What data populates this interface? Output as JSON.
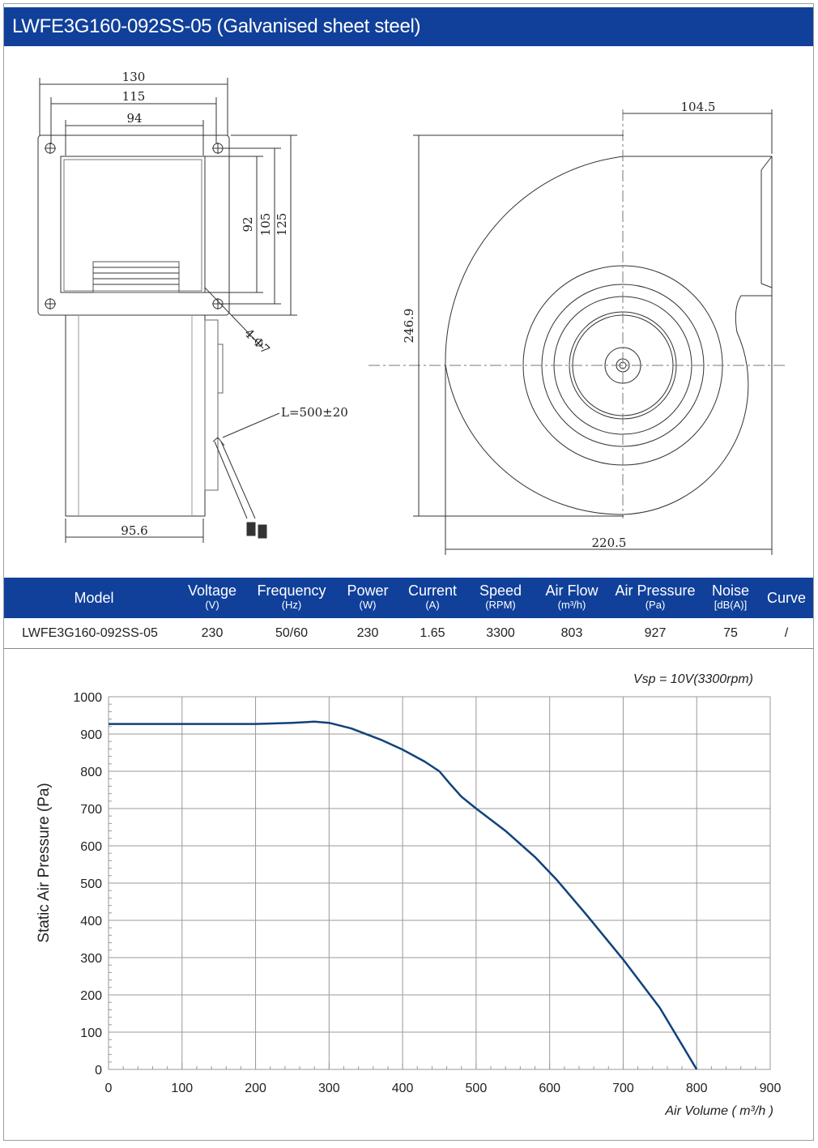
{
  "header": {
    "title": "LWFE3G160-092SS-05 (Galvanised sheet steel)"
  },
  "drawing": {
    "dims": {
      "d130": "130",
      "d115": "115",
      "d94": "94",
      "d92": "92",
      "d105": "105",
      "d125": "125",
      "holes": "4-Φ7",
      "d95_6": "95.6",
      "cable": "L=500±20",
      "d104_5": "104.5",
      "d246_9": "246.9",
      "d220_5": "220.5"
    }
  },
  "specs": {
    "columns": [
      {
        "label": "Model",
        "unit": ""
      },
      {
        "label": "Voltage",
        "unit": "(V)"
      },
      {
        "label": "Frequency",
        "unit": "(Hz)"
      },
      {
        "label": "Power",
        "unit": "(W)"
      },
      {
        "label": "Current",
        "unit": "(A)"
      },
      {
        "label": "Speed",
        "unit": "(RPM)"
      },
      {
        "label": "Air Flow",
        "unit": "(m³/h)"
      },
      {
        "label": "Air Pressure",
        "unit": "(Pa)"
      },
      {
        "label": "Noise",
        "unit": "[dB(A)]"
      },
      {
        "label": "Curve",
        "unit": ""
      }
    ],
    "row": [
      "LWFE3G160-092SS-05",
      "230",
      "50/60",
      "230",
      "1.65",
      "3300",
      "803",
      "927",
      "75",
      "/"
    ]
  },
  "chart_data": {
    "type": "line",
    "annotation": "Vsp = 10V(3300rpm)",
    "xlabel": "Air Volume ( m³/h )",
    "ylabel": "Static Air Pressure  (Pa)",
    "xlim": [
      0,
      900
    ],
    "ylim": [
      0,
      1000
    ],
    "xticks": [
      0,
      100,
      200,
      300,
      400,
      500,
      600,
      700,
      800,
      900
    ],
    "yticks": [
      0,
      100,
      200,
      300,
      400,
      500,
      600,
      700,
      800,
      900,
      1000
    ],
    "grid": true,
    "color": "#10427a",
    "series": [
      {
        "x": [
          0,
          100,
          200,
          250,
          280,
          300,
          330,
          370,
          400,
          430,
          450,
          465,
          480,
          500,
          540,
          580,
          610,
          650,
          700,
          750,
          800
        ],
        "y": [
          927,
          927,
          927,
          930,
          933,
          930,
          915,
          885,
          858,
          826,
          800,
          765,
          732,
          700,
          640,
          570,
          508,
          415,
          295,
          165,
          0
        ]
      }
    ]
  }
}
